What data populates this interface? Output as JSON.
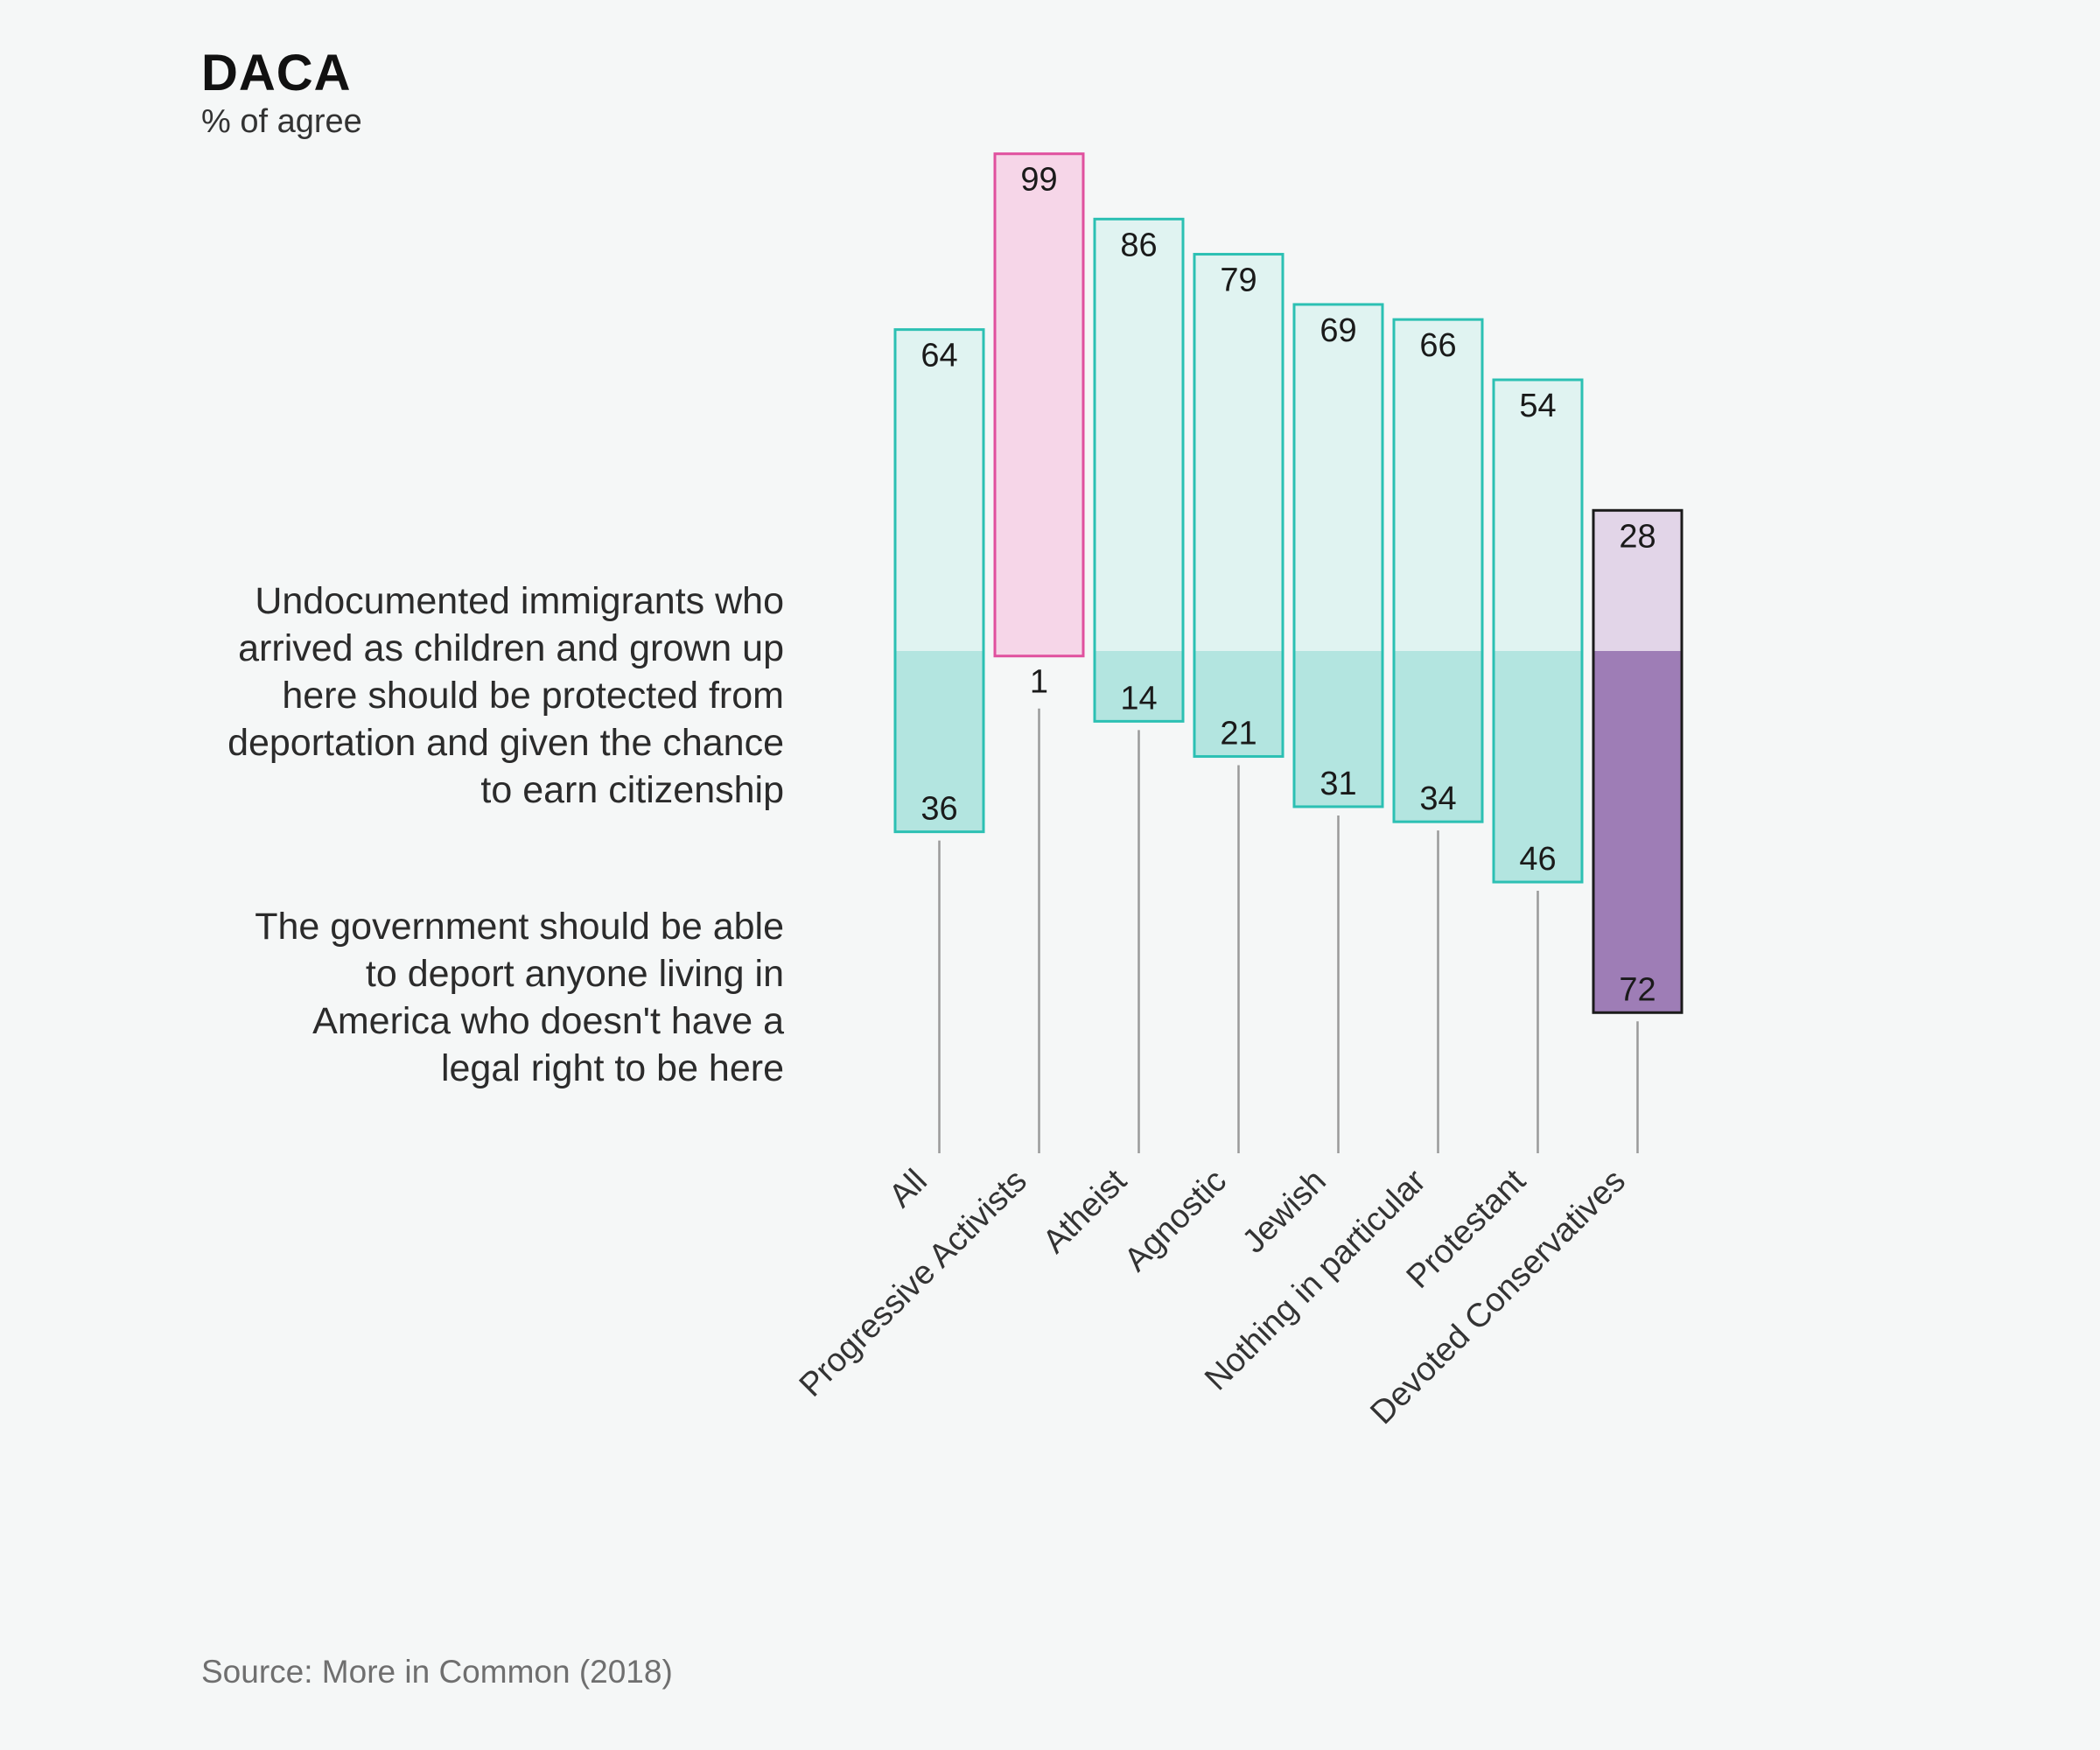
{
  "header": {
    "title": "DACA",
    "subtitle": "% of agree"
  },
  "statements": {
    "agree": "Undocumented immigrants who arrived as children and grown up here should be protected from deportation and given the chance to earn citizenship",
    "disagree": "The government should be able to deport anyone living in America who doesn't have a legal right to be here"
  },
  "footer": {
    "source": "Source: More in Common (2018)"
  },
  "colors": {
    "background": "#f5f7f7",
    "teal_border": "#2cc0b3",
    "teal_light": "#e0f3f1",
    "teal_dark": "#b3e5e0",
    "pink_border": "#e0509e",
    "pink_light": "#f6d6e8",
    "purple_border": "#1b1b1b",
    "purple_light": "#e2d5e8",
    "purple_dark": "#9e7db6",
    "stem": "#9a9a9a"
  },
  "chart_data": {
    "type": "bar",
    "subtype": "diverging-stacked",
    "title": "DACA",
    "subtitle": "% of agree",
    "categories": [
      "All",
      "Progressive Activists",
      "Atheist",
      "Agnostic",
      "Jewish",
      "Nothing in particular",
      "Protestant",
      "Devoted Conservatives"
    ],
    "series": [
      {
        "name": "Undocumented immigrants who arrived as children and grown up here should be protected from deportation and given the chance to earn citizenship",
        "values": [
          64,
          99,
          86,
          79,
          69,
          66,
          54,
          28
        ]
      },
      {
        "name": "The government should be able to deport anyone living in America who doesn't have a legal right to be here",
        "values": [
          36,
          1,
          14,
          21,
          31,
          34,
          46,
          72
        ]
      }
    ],
    "highlight": {
      "Progressive Activists": "pink",
      "Devoted Conservatives": "purple"
    },
    "ylim": [
      0,
      100
    ],
    "grid": false
  }
}
